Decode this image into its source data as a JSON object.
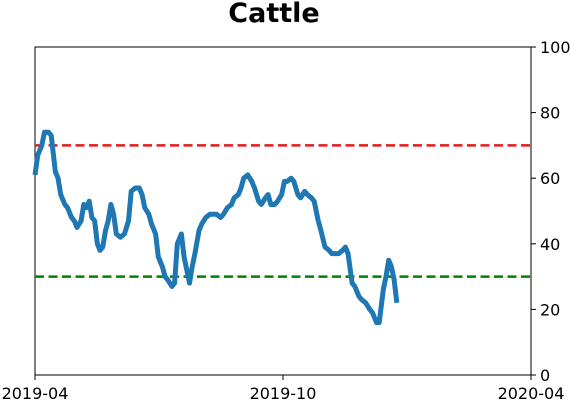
{
  "chart_data": {
    "type": "line",
    "title": "Cattle",
    "xlabel": "",
    "ylabel": "",
    "ylim": [
      0,
      100
    ],
    "y_axis_side": "right",
    "yticks": [
      0,
      20,
      40,
      60,
      80,
      100
    ],
    "xlim": [
      "2019-04-01",
      "2020-04-01"
    ],
    "xticks": [
      {
        "value": "2019-04-01",
        "label": "2019-04"
      },
      {
        "value": "2019-10-01",
        "label": "2019-10"
      },
      {
        "value": "2020-04-01",
        "label": "2020-04"
      }
    ],
    "grid": false,
    "reference_lines": [
      {
        "y": 70,
        "color": "#e41a1c",
        "style": "dashed"
      },
      {
        "y": 30,
        "color": "#008000",
        "style": "dashed"
      }
    ],
    "series": [
      {
        "color": "#1f77b4",
        "points": [
          [
            "2019-04-01",
            61
          ],
          [
            "2019-04-03",
            67
          ],
          [
            "2019-04-06",
            70
          ],
          [
            "2019-04-08",
            74
          ],
          [
            "2019-04-11",
            74
          ],
          [
            "2019-04-13",
            73
          ],
          [
            "2019-04-16",
            62
          ],
          [
            "2019-04-18",
            60
          ],
          [
            "2019-04-20",
            55
          ],
          [
            "2019-04-23",
            52
          ],
          [
            "2019-04-25",
            51
          ],
          [
            "2019-04-28",
            48
          ],
          [
            "2019-04-30",
            47
          ],
          [
            "2019-05-02",
            45
          ],
          [
            "2019-05-05",
            47
          ],
          [
            "2019-05-07",
            52
          ],
          [
            "2019-05-09",
            51
          ],
          [
            "2019-05-11",
            53
          ],
          [
            "2019-05-13",
            48
          ],
          [
            "2019-05-15",
            47
          ],
          [
            "2019-05-17",
            40
          ],
          [
            "2019-05-19",
            38
          ],
          [
            "2019-05-21",
            39
          ],
          [
            "2019-05-23",
            44
          ],
          [
            "2019-05-25",
            47
          ],
          [
            "2019-05-27",
            52
          ],
          [
            "2019-05-29",
            49
          ],
          [
            "2019-05-31",
            43
          ],
          [
            "2019-06-03",
            42
          ],
          [
            "2019-06-06",
            43
          ],
          [
            "2019-06-09",
            47
          ],
          [
            "2019-06-11",
            56
          ],
          [
            "2019-06-14",
            57
          ],
          [
            "2019-06-17",
            57
          ],
          [
            "2019-06-19",
            55
          ],
          [
            "2019-06-21",
            51
          ],
          [
            "2019-06-24",
            49
          ],
          [
            "2019-06-26",
            46
          ],
          [
            "2019-06-29",
            43
          ],
          [
            "2019-07-01",
            36
          ],
          [
            "2019-07-04",
            33
          ],
          [
            "2019-07-06",
            30
          ],
          [
            "2019-07-08",
            29
          ],
          [
            "2019-07-11",
            27
          ],
          [
            "2019-07-13",
            28
          ],
          [
            "2019-07-15",
            40
          ],
          [
            "2019-07-18",
            43
          ],
          [
            "2019-07-20",
            36
          ],
          [
            "2019-07-22",
            32
          ],
          [
            "2019-07-24",
            28
          ],
          [
            "2019-07-26",
            33
          ],
          [
            "2019-07-28",
            37
          ],
          [
            "2019-07-31",
            44
          ],
          [
            "2019-08-02",
            46
          ],
          [
            "2019-08-05",
            48
          ],
          [
            "2019-08-08",
            49
          ],
          [
            "2019-08-11",
            49
          ],
          [
            "2019-08-13",
            49
          ],
          [
            "2019-08-16",
            48
          ],
          [
            "2019-08-18",
            49
          ],
          [
            "2019-08-21",
            51
          ],
          [
            "2019-08-24",
            52
          ],
          [
            "2019-08-26",
            54
          ],
          [
            "2019-08-29",
            55
          ],
          [
            "2019-08-31",
            57
          ],
          [
            "2019-09-02",
            60
          ],
          [
            "2019-09-05",
            61
          ],
          [
            "2019-09-08",
            59
          ],
          [
            "2019-09-10",
            57
          ],
          [
            "2019-09-13",
            53
          ],
          [
            "2019-09-15",
            52
          ],
          [
            "2019-09-18",
            54
          ],
          [
            "2019-09-20",
            55
          ],
          [
            "2019-09-22",
            52
          ],
          [
            "2019-09-25",
            52
          ],
          [
            "2019-09-27",
            53
          ],
          [
            "2019-09-30",
            55
          ],
          [
            "2019-10-02",
            59
          ],
          [
            "2019-10-04",
            59
          ],
          [
            "2019-10-07",
            60
          ],
          [
            "2019-10-09",
            59
          ],
          [
            "2019-10-12",
            55
          ],
          [
            "2019-10-14",
            54
          ],
          [
            "2019-10-17",
            56
          ],
          [
            "2019-10-19",
            55
          ],
          [
            "2019-10-22",
            54
          ],
          [
            "2019-10-24",
            53
          ],
          [
            "2019-10-27",
            47
          ],
          [
            "2019-10-29",
            44
          ],
          [
            "2019-11-01",
            39
          ],
          [
            "2019-11-04",
            38
          ],
          [
            "2019-11-06",
            37
          ],
          [
            "2019-11-09",
            37
          ],
          [
            "2019-11-11",
            37
          ],
          [
            "2019-11-14",
            38
          ],
          [
            "2019-11-16",
            39
          ],
          [
            "2019-11-18",
            37
          ],
          [
            "2019-11-21",
            28
          ],
          [
            "2019-11-23",
            27
          ],
          [
            "2019-11-26",
            24
          ],
          [
            "2019-11-28",
            23
          ],
          [
            "2019-12-01",
            22
          ],
          [
            "2019-12-04",
            20
          ],
          [
            "2019-12-06",
            19
          ],
          [
            "2019-12-09",
            16
          ],
          [
            "2019-12-11",
            16
          ],
          [
            "2019-12-14",
            26
          ],
          [
            "2019-12-16",
            30
          ],
          [
            "2019-12-18",
            35
          ],
          [
            "2019-12-20",
            33
          ],
          [
            "2019-12-22",
            29
          ],
          [
            "2019-12-24",
            22
          ]
        ]
      }
    ]
  }
}
